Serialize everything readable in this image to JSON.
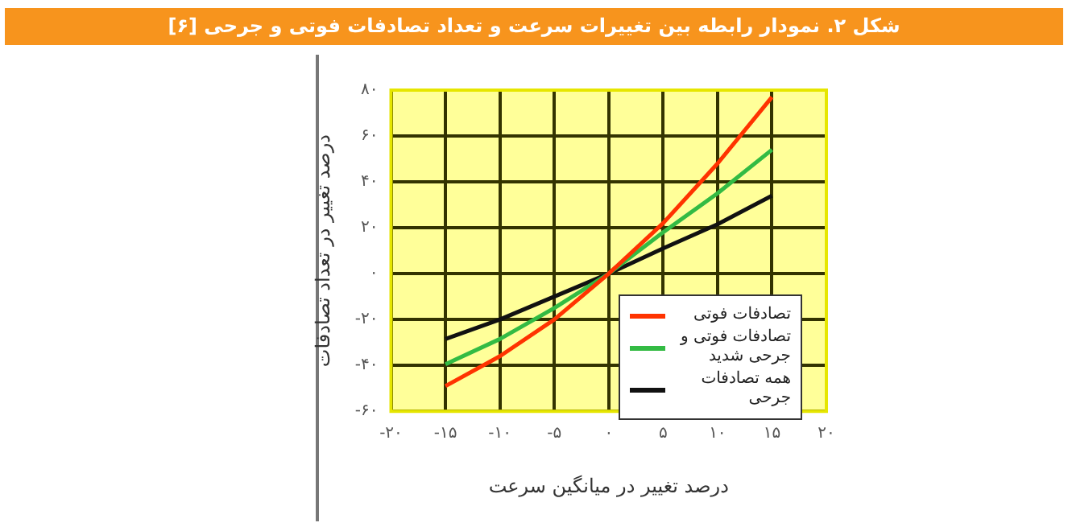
{
  "chart_data": {
    "type": "line",
    "title": "شکل ۲. نمودار رابطه بین تغییرات سرعت و تعداد تصادفات فوتی و جرحی [۶]",
    "xlabel": "درصد تغییر در میانگین سرعت",
    "ylabel": "درصد تغییر در تعداد تصادفات",
    "x": [
      -15,
      -10,
      -5,
      0,
      5,
      10,
      15
    ],
    "series": [
      {
        "name": "تصادفات فوتی",
        "color": "#ff3300",
        "values": [
          -49,
          -36,
          -20,
          0,
          22,
          48,
          77
        ]
      },
      {
        "name": "تصادفات فوتی و جرحی شدید",
        "color": "#33bb44",
        "values": [
          -39.5,
          -28.5,
          -15,
          0,
          18,
          35,
          54
        ]
      },
      {
        "name": "همه تصادفات جرحی",
        "color": "#111111",
        "values": [
          -28.5,
          -20,
          -10,
          0,
          11,
          21.5,
          34
        ]
      }
    ],
    "xlim": [
      -20,
      20
    ],
    "xticks": [
      {
        "value": -20,
        "label": "-۲۰"
      },
      {
        "value": -15,
        "label": "-۱۵"
      },
      {
        "value": -10,
        "label": "-۱۰"
      },
      {
        "value": -5,
        "label": "-۵"
      },
      {
        "value": 0,
        "label": "۰"
      },
      {
        "value": 5,
        "label": "۵"
      },
      {
        "value": 10,
        "label": "۱۰"
      },
      {
        "value": 15,
        "label": "۱۵"
      },
      {
        "value": 20,
        "label": "۲۰"
      }
    ],
    "ylim": [
      -60,
      80
    ],
    "yticks": [
      {
        "value": -60,
        "label": "-۶۰"
      },
      {
        "value": -40,
        "label": "-۴۰"
      },
      {
        "value": -20,
        "label": "-۲۰"
      },
      {
        "value": 0,
        "label": "۰"
      },
      {
        "value": 20,
        "label": "۲۰"
      },
      {
        "value": 40,
        "label": "۴۰"
      },
      {
        "value": 60,
        "label": "۶۰"
      },
      {
        "value": 80,
        "label": "۸۰"
      }
    ],
    "grid": true,
    "legend": "bottom right",
    "marker": "none",
    "line_style": "solid"
  }
}
